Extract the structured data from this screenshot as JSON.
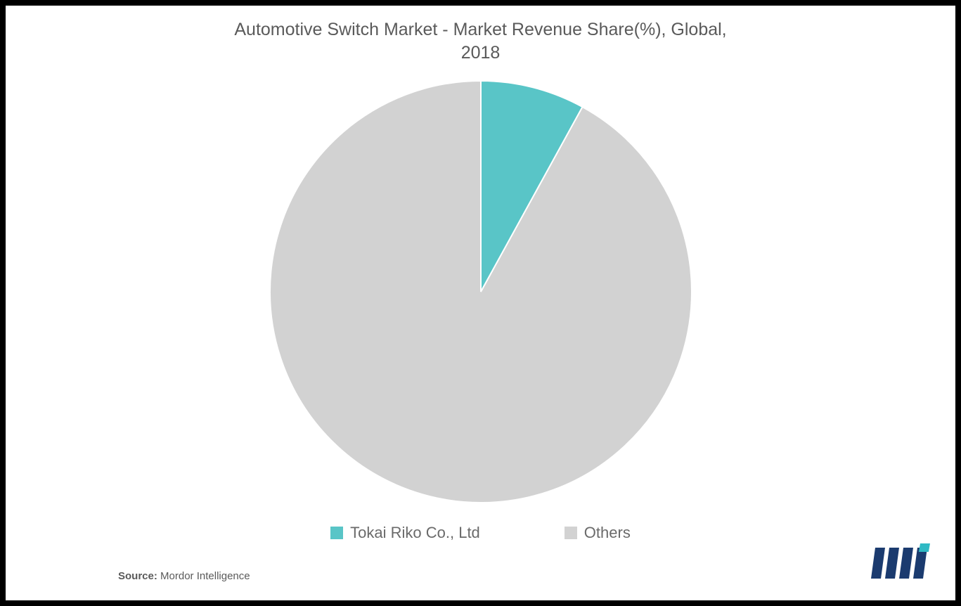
{
  "chart": {
    "type": "pie",
    "title_line1": "Automotive Switch Market - Market Revenue Share(%), Global,",
    "title_line2": "2018",
    "title_fontsize": 25,
    "title_color": "#5a5a5a",
    "background_color": "#ffffff",
    "outer_background": "#000000",
    "radius": 300,
    "slices": [
      {
        "label": "Tokai Riko Co., Ltd",
        "value": 8,
        "color": "#59c5c7"
      },
      {
        "label": "Others",
        "value": 92,
        "color": "#d2d2d2"
      }
    ],
    "slice_border_color": "#ffffff",
    "slice_border_width": 2,
    "legend": {
      "fontsize": 22,
      "text_color": "#6a6a6a",
      "swatch_size": 18,
      "items": [
        {
          "swatch": "#59c5c7",
          "text": "Tokai Riko Co., Ltd"
        },
        {
          "swatch": "#d2d2d2",
          "text": "Others"
        }
      ]
    }
  },
  "source": {
    "prefix": "Source:",
    "text": "Mordor Intelligence",
    "fontsize": 15,
    "color": "#5a5a5a"
  },
  "logo": {
    "bar_color": "#1b3b6f",
    "accent_color": "#2fb9c4"
  }
}
